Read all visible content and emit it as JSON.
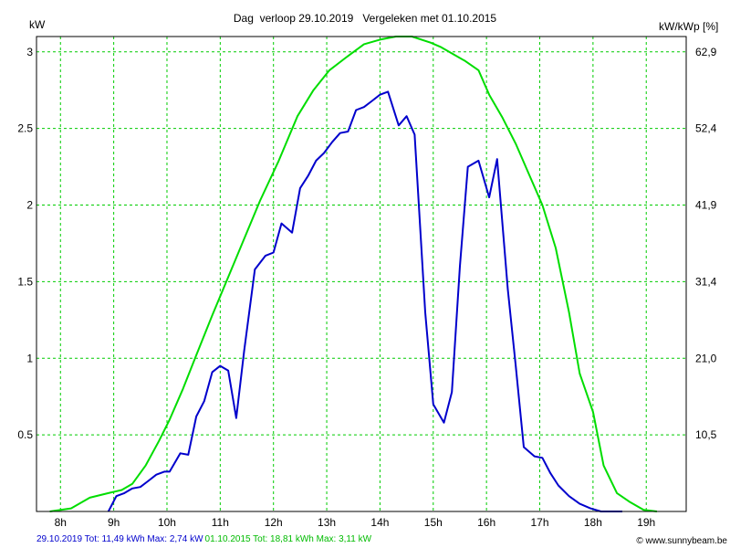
{
  "chart_data": {
    "type": "line",
    "title": "Dag  verloop 29.10.2019   Vergeleken met 01.10.2015",
    "ylabel_left": "kW",
    "ylabel_right": "kW/kWp [%]",
    "ylim": [
      0,
      3.1
    ],
    "xlim": [
      7.55,
      19.75
    ],
    "grid": true,
    "x_ticks": [
      {
        "x": 8,
        "label": "8h"
      },
      {
        "x": 9,
        "label": "9h"
      },
      {
        "x": 10,
        "label": "10h"
      },
      {
        "x": 11,
        "label": "11h"
      },
      {
        "x": 12,
        "label": "12h"
      },
      {
        "x": 13,
        "label": "13h"
      },
      {
        "x": 14,
        "label": "14h"
      },
      {
        "x": 15,
        "label": "15h"
      },
      {
        "x": 16,
        "label": "16h"
      },
      {
        "x": 17,
        "label": "17h"
      },
      {
        "x": 18,
        "label": "18h"
      },
      {
        "x": 19,
        "label": "19h"
      }
    ],
    "y_ticks_left": [
      {
        "y": 0.5,
        "label": "0.5"
      },
      {
        "y": 1,
        "label": "1"
      },
      {
        "y": 1.5,
        "label": "1.5"
      },
      {
        "y": 2,
        "label": "2"
      },
      {
        "y": 2.5,
        "label": "2.5"
      },
      {
        "y": 3,
        "label": "3"
      }
    ],
    "y_ticks_right": [
      {
        "y": 0.5,
        "label": "10,5"
      },
      {
        "y": 1,
        "label": "21,0"
      },
      {
        "y": 1.5,
        "label": "31,4"
      },
      {
        "y": 2,
        "label": "41,9"
      },
      {
        "y": 2.5,
        "label": "52,4"
      },
      {
        "y": 3,
        "label": "62,9"
      }
    ],
    "series": [
      {
        "color": "#0000cc",
        "x": [
          8.9,
          9.05,
          9.2,
          9.35,
          9.5,
          9.65,
          9.8,
          9.95,
          10.05,
          10.25,
          10.4,
          10.55,
          10.7,
          10.85,
          11.0,
          11.15,
          11.3,
          11.45,
          11.65,
          11.85,
          12.0,
          12.15,
          12.35,
          12.5,
          12.65,
          12.8,
          12.95,
          13.1,
          13.25,
          13.4,
          13.55,
          13.7,
          13.85,
          14.0,
          14.15,
          14.35,
          14.5,
          14.65,
          14.85,
          15.0,
          15.2,
          15.35,
          15.5,
          15.65,
          15.85,
          16.05,
          16.2,
          16.4,
          16.55,
          16.7,
          16.9,
          17.05,
          17.2,
          17.35,
          17.55,
          17.75,
          17.95,
          18.15,
          18.35,
          18.55
        ],
        "y": [
          0.0,
          0.1,
          0.12,
          0.15,
          0.16,
          0.2,
          0.24,
          0.26,
          0.26,
          0.38,
          0.37,
          0.62,
          0.72,
          0.91,
          0.95,
          0.92,
          0.61,
          1.05,
          1.58,
          1.67,
          1.69,
          1.88,
          1.82,
          2.11,
          2.19,
          2.29,
          2.34,
          2.41,
          2.47,
          2.48,
          2.62,
          2.64,
          2.68,
          2.72,
          2.74,
          2.52,
          2.58,
          2.46,
          1.3,
          0.7,
          0.58,
          0.78,
          1.6,
          2.25,
          2.29,
          2.05,
          2.3,
          1.45,
          0.95,
          0.42,
          0.36,
          0.35,
          0.25,
          0.17,
          0.1,
          0.05,
          0.02,
          0.0,
          0.0,
          0.0
        ]
      },
      {
        "color": "#00dd00",
        "x": [
          7.8,
          8.2,
          8.55,
          8.9,
          9.15,
          9.35,
          9.6,
          9.85,
          10.05,
          10.3,
          10.55,
          10.85,
          11.15,
          11.45,
          11.75,
          12.1,
          12.45,
          12.75,
          13.05,
          13.35,
          13.7,
          14.0,
          14.3,
          14.6,
          14.95,
          15.15,
          15.4,
          15.6,
          15.85,
          16.05,
          16.3,
          16.55,
          16.8,
          17.05,
          17.3,
          17.55,
          17.75,
          18.0,
          18.2,
          18.45,
          18.7,
          18.95,
          19.2
        ],
        "y": [
          0.0,
          0.02,
          0.09,
          0.12,
          0.14,
          0.18,
          0.3,
          0.46,
          0.6,
          0.8,
          1.02,
          1.28,
          1.53,
          1.78,
          2.03,
          2.29,
          2.58,
          2.75,
          2.88,
          2.96,
          3.05,
          3.08,
          3.1,
          3.1,
          3.06,
          3.03,
          2.98,
          2.94,
          2.88,
          2.72,
          2.57,
          2.4,
          2.2,
          2.0,
          1.72,
          1.3,
          0.9,
          0.65,
          0.3,
          0.12,
          0.06,
          0.01,
          0.0
        ]
      }
    ]
  },
  "footer": {
    "series1_text": "29.10.2019 Tot: 11,49 kWh Max: 2,74 kW",
    "series2_text": "01.10.2015 Tot: 18,81 kWh Max: 3,11 kW",
    "copyright": "© www.sunnybeam.be"
  },
  "colors": {
    "grid": "#00cc00",
    "axis": "#000000",
    "background": "#ffffff"
  }
}
